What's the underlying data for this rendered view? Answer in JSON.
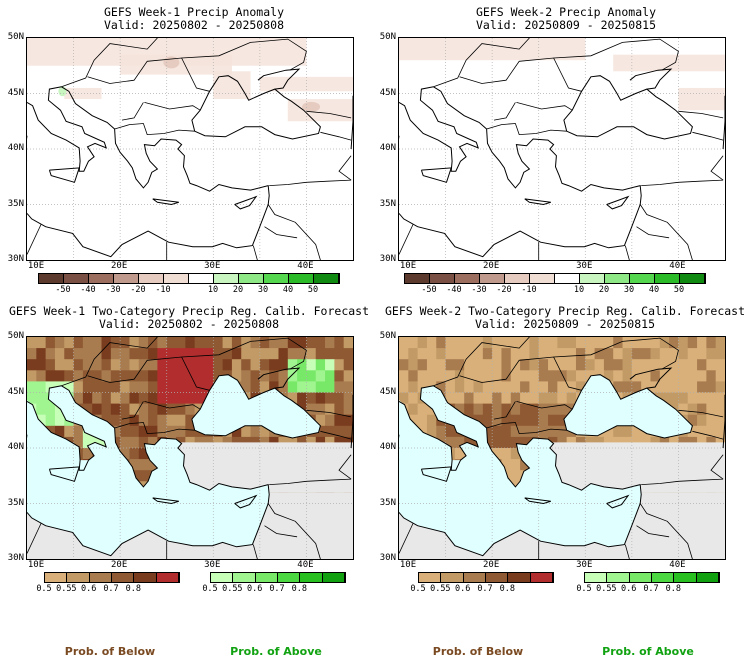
{
  "panels": [
    {
      "title_line1": "GEFS Week-1 Precip Anomaly",
      "title_line2": "Valid: 20250802 - 20250808",
      "type": "anomaly"
    },
    {
      "title_line1": "GEFS Week-2 Precip Anomaly",
      "title_line2": "Valid: 20250809 - 20250815",
      "type": "anomaly"
    },
    {
      "title_line1": "GEFS Week-1 Two-Category Precip Reg. Calib. Forecast",
      "title_line2": "Valid: 20250802 - 20250808",
      "type": "probability"
    },
    {
      "title_line1": "GEFS Week-2 Two-Category Precip Reg. Calib. Forecast",
      "title_line2": "Valid: 20250809 - 20250815",
      "type": "probability"
    }
  ],
  "axes": {
    "lat_labels": [
      "50N",
      "45N",
      "40N",
      "35N",
      "30N"
    ],
    "lon_labels": [
      "10E",
      "20E",
      "30E",
      "40E"
    ]
  },
  "anomaly_colorbar": {
    "labels": [
      "-50",
      "-40",
      "-30",
      "-20",
      "-10",
      "10",
      "20",
      "30",
      "40",
      "50"
    ],
    "colors": [
      "#5c3a2e",
      "#7a5044",
      "#9c6e60",
      "#c09a8c",
      "#e6cbc0",
      "#f0ddd4",
      "#ffffff",
      "#c8f5c0",
      "#8ee886",
      "#55d850",
      "#2cbb28",
      "#108a10"
    ]
  },
  "prob_below_colorbar": {
    "labels": [
      "0.5",
      "0.55",
      "0.6",
      "0.7",
      "0.8"
    ],
    "colors": [
      "#d9b07a",
      "#c29a66",
      "#a97c50",
      "#8f5a33",
      "#7a3c1e",
      "#b22e2e"
    ]
  },
  "prob_above_colorbar": {
    "labels": [
      "0.5",
      "0.55",
      "0.6",
      "0.7",
      "0.8"
    ],
    "colors": [
      "#c8ffb8",
      "#a0f590",
      "#78e868",
      "#4cd840",
      "#28c020",
      "#10a010"
    ]
  },
  "prob_of_below_label": "Prob. of Below",
  "prob_of_above_label": "Prob. of Above",
  "colors": {
    "sea_fill": "#e0ffff",
    "no_data_gray": "#e8e8e8",
    "below_text": "#7a4a22",
    "above_text": "#11a211"
  }
}
